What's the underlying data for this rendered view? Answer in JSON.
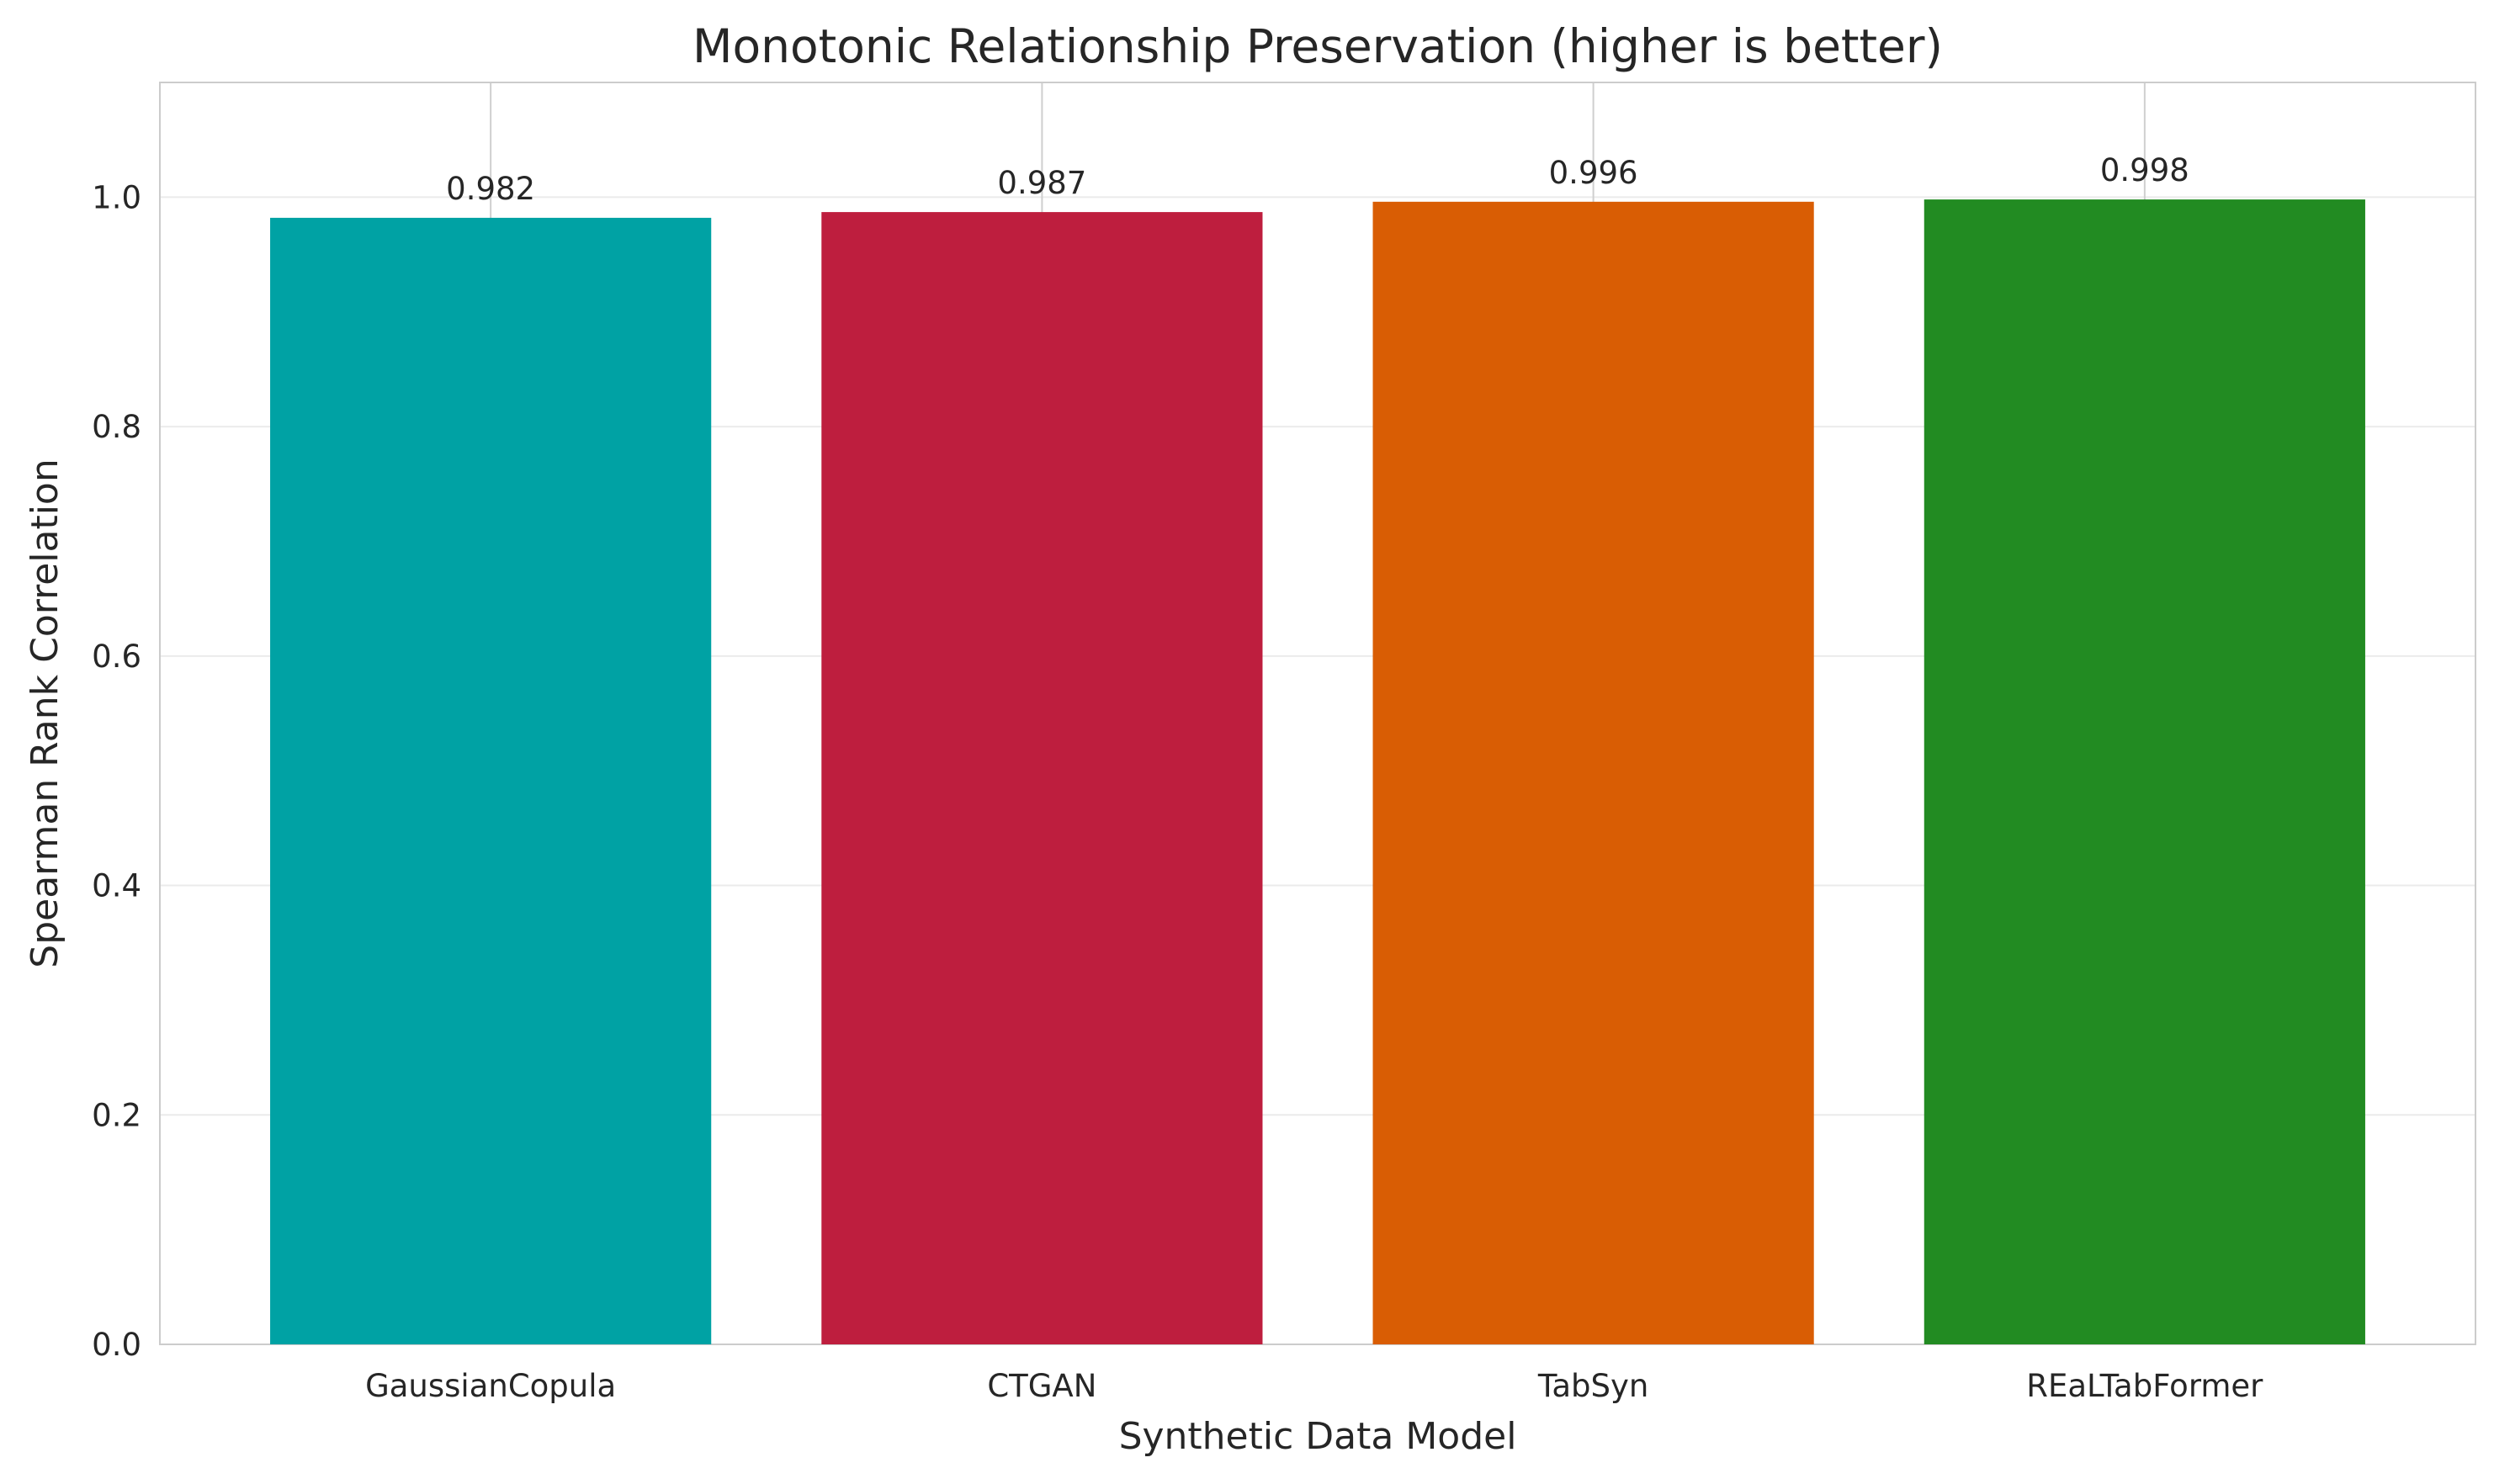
{
  "chart_data": {
    "type": "bar",
    "title": "Monotonic Relationship Preservation (higher is better)",
    "xlabel": "Synthetic Data Model",
    "ylabel": "Spearman Rank Correlation",
    "ylim": [
      0,
      1.1
    ],
    "yticks": [
      0.0,
      0.2,
      0.4,
      0.6,
      0.8,
      1.0
    ],
    "ytick_labels": [
      "0.0",
      "0.2",
      "0.4",
      "0.6",
      "0.8",
      "1.0"
    ],
    "categories": [
      "GaussianCopula",
      "CTGAN",
      "TabSyn",
      "REaLTabFormer"
    ],
    "values": [
      0.982,
      0.987,
      0.996,
      0.998
    ],
    "value_labels": [
      "0.982",
      "0.987",
      "0.996",
      "0.998"
    ],
    "colors": [
      "#00A2A4",
      "#BE1E3E",
      "#D95D04",
      "#228B22"
    ],
    "grid": true,
    "legend": "none"
  }
}
